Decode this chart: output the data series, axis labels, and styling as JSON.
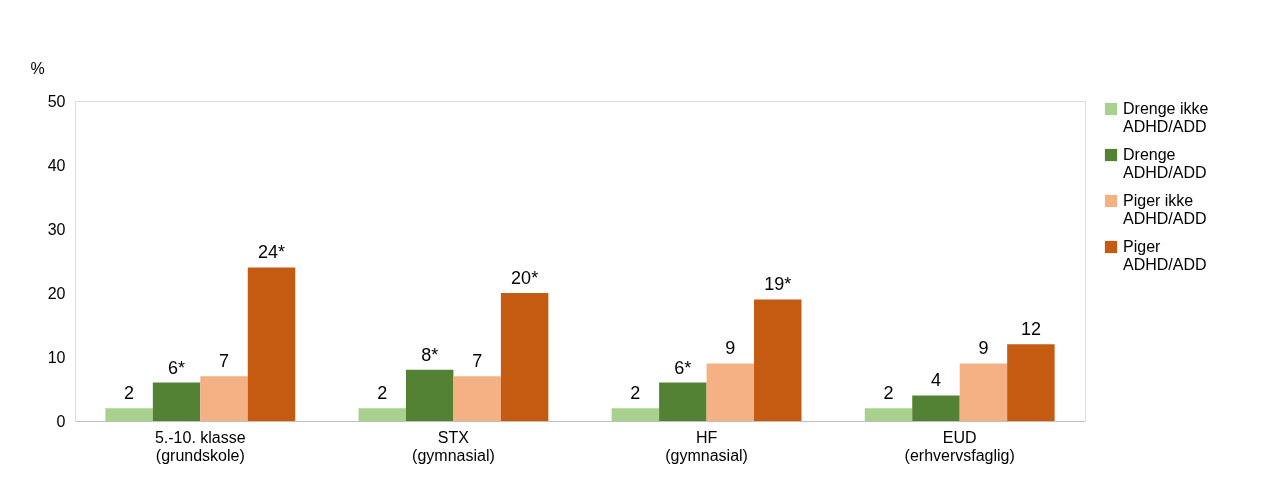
{
  "chart_data": {
    "type": "bar",
    "ylabel": "%",
    "categories": [
      "5.-10. klasse\n(grundskole)",
      "STX\n(gymnasial)",
      "HF\n(gymnasial)",
      "EUD\n(erhvervsfaglig)"
    ],
    "series": [
      {
        "name": "Drenge ikke\nADHD/ADD",
        "color": "#a9d18e",
        "values": [
          2,
          2,
          2,
          2
        ],
        "value_labels": [
          "2",
          "2",
          "2",
          "2"
        ]
      },
      {
        "name": "Drenge\nADHD/ADD",
        "color": "#548235",
        "values": [
          6,
          8,
          6,
          4
        ],
        "value_labels": [
          "6*",
          "8*",
          "6*",
          "4"
        ]
      },
      {
        "name": "Piger ikke\nADHD/ADD",
        "color": "#f4b183",
        "values": [
          7,
          7,
          9,
          9
        ],
        "value_labels": [
          "7",
          "7",
          "9",
          "9"
        ]
      },
      {
        "name": "Piger\nADHD/ADD",
        "color": "#c55a11",
        "values": [
          24,
          20,
          19,
          12
        ],
        "value_labels": [
          "24*",
          "20*",
          "19*",
          "12"
        ]
      }
    ],
    "ylim": [
      0,
      50
    ],
    "yticks": [
      0,
      10,
      20,
      30,
      40,
      50
    ],
    "grid": false,
    "legend": "right"
  }
}
